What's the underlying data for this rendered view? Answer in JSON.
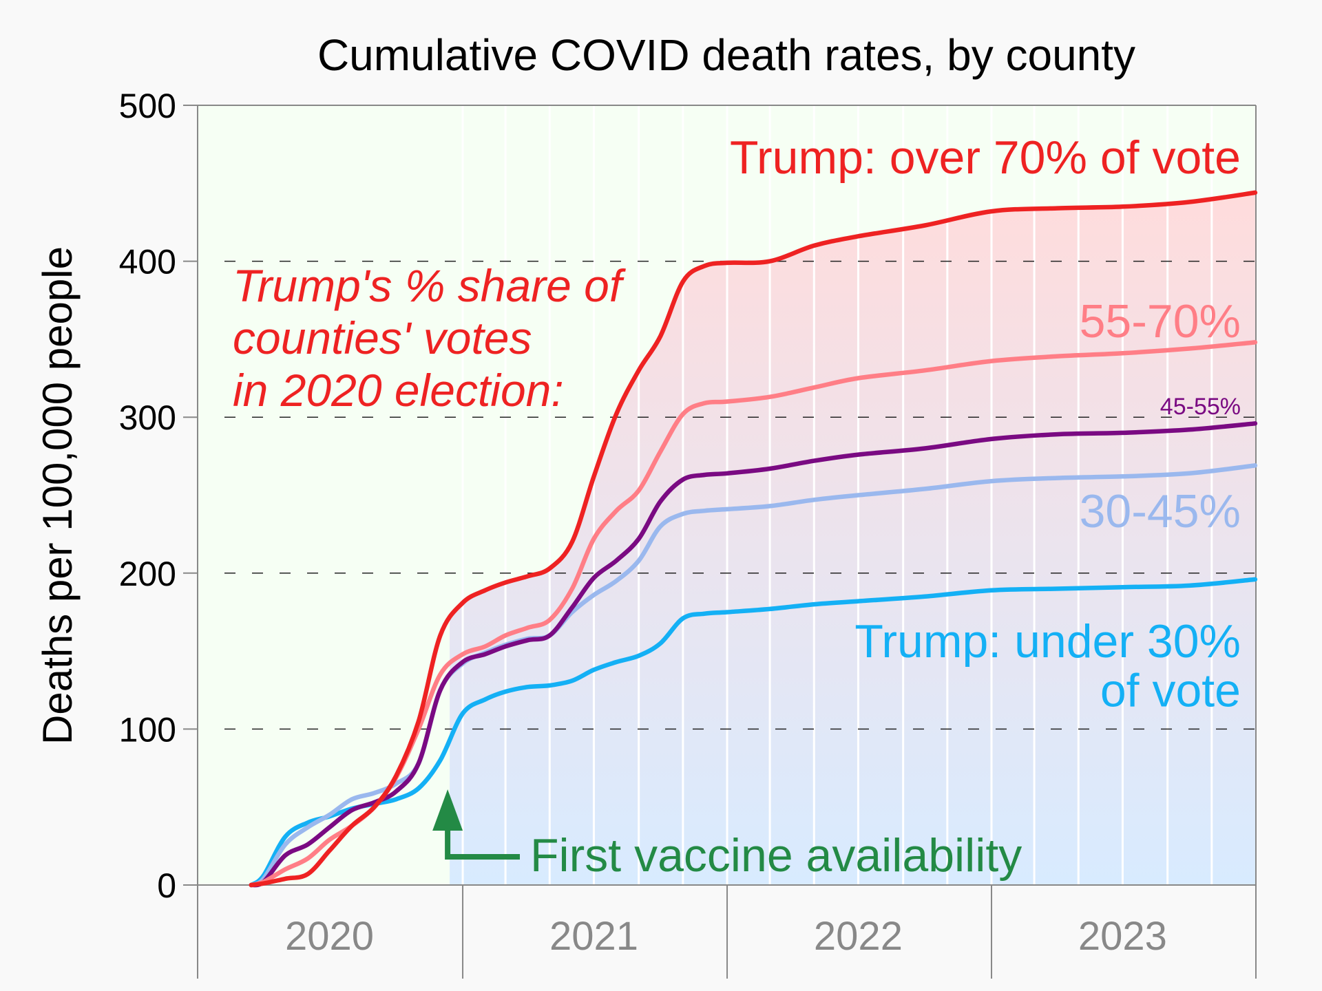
{
  "colors": {
    "background": "#f9f9f9",
    "plot_bg": "#f6fff4",
    "band_top": "#ffdcdc",
    "band_bottom": "#d8ebff",
    "vaccine": "#238a45",
    "axis": "#888888",
    "grid": "#222222",
    "year_text": "#888888"
  },
  "chart_data": {
    "type": "line",
    "title": "Cumulative COVID death rates, by county",
    "ylabel": "Deaths per 100,000 people",
    "xlabel": "",
    "x_unit": "date",
    "xlim": [
      "2020-01-01",
      "2023-12-31"
    ],
    "ylim": [
      0,
      500
    ],
    "yticks": [
      0,
      100,
      200,
      300,
      400,
      500
    ],
    "y_tick_labels": [
      "0",
      "100",
      "200",
      "300",
      "400",
      "500"
    ],
    "x_tick_labels": [
      {
        "label": "2020",
        "center": "2020-07-01"
      },
      {
        "label": "2021",
        "center": "2021-07-01"
      },
      {
        "label": "2022",
        "center": "2022-07-01"
      },
      {
        "label": "2023",
        "center": "2023-07-01"
      }
    ],
    "grid": "dashed horizontal at 100, 200, 300, 400",
    "legend": "labels placed on the right next to each line",
    "group_heading": "Trump's % share of\ncounties' votes\nin 2020 election:",
    "annotation": {
      "text": "First vaccine availability",
      "date": "2020-12-14"
    },
    "series": [
      {
        "name": "Trump: over 70% of vote",
        "label_lines": [
          "Trump: over 70% of vote"
        ],
        "color": "#ee2222",
        "points": [
          [
            "2020-03-15",
            0
          ],
          [
            "2020-04-01",
            1
          ],
          [
            "2020-05-01",
            4
          ],
          [
            "2020-06-01",
            7
          ],
          [
            "2020-07-01",
            22
          ],
          [
            "2020-08-01",
            38
          ],
          [
            "2020-09-01",
            50
          ],
          [
            "2020-10-01",
            70
          ],
          [
            "2020-11-01",
            105
          ],
          [
            "2020-12-01",
            160
          ],
          [
            "2021-01-01",
            181
          ],
          [
            "2021-02-01",
            189
          ],
          [
            "2021-03-01",
            194
          ],
          [
            "2021-04-01",
            198
          ],
          [
            "2021-05-01",
            203
          ],
          [
            "2021-06-01",
            220
          ],
          [
            "2021-07-01",
            262
          ],
          [
            "2021-08-01",
            302
          ],
          [
            "2021-09-01",
            330
          ],
          [
            "2021-10-01",
            352
          ],
          [
            "2021-11-01",
            387
          ],
          [
            "2021-12-01",
            397
          ],
          [
            "2022-01-01",
            399
          ],
          [
            "2022-03-01",
            400
          ],
          [
            "2022-05-01",
            410
          ],
          [
            "2022-07-01",
            416
          ],
          [
            "2022-10-01",
            423
          ],
          [
            "2023-01-01",
            432
          ],
          [
            "2023-04-01",
            434
          ],
          [
            "2023-07-01",
            435
          ],
          [
            "2023-10-01",
            438
          ],
          [
            "2023-12-31",
            444
          ]
        ]
      },
      {
        "name": "55-70%",
        "label_lines": [
          "55-70%"
        ],
        "color": "#ff7e86",
        "points": [
          [
            "2020-03-15",
            0
          ],
          [
            "2020-04-01",
            2
          ],
          [
            "2020-05-01",
            10
          ],
          [
            "2020-06-01",
            17
          ],
          [
            "2020-07-01",
            29
          ],
          [
            "2020-08-01",
            38
          ],
          [
            "2020-09-01",
            50
          ],
          [
            "2020-10-01",
            69
          ],
          [
            "2020-11-01",
            100
          ],
          [
            "2020-12-01",
            135
          ],
          [
            "2021-01-01",
            148
          ],
          [
            "2021-02-01",
            153
          ],
          [
            "2021-03-01",
            160
          ],
          [
            "2021-04-01",
            165
          ],
          [
            "2021-05-01",
            170
          ],
          [
            "2021-06-01",
            190
          ],
          [
            "2021-07-01",
            222
          ],
          [
            "2021-08-01",
            240
          ],
          [
            "2021-09-01",
            253
          ],
          [
            "2021-10-01",
            278
          ],
          [
            "2021-11-01",
            302
          ],
          [
            "2021-12-01",
            309
          ],
          [
            "2022-01-01",
            310
          ],
          [
            "2022-03-01",
            313
          ],
          [
            "2022-05-01",
            319
          ],
          [
            "2022-07-01",
            325
          ],
          [
            "2022-10-01",
            330
          ],
          [
            "2023-01-01",
            336
          ],
          [
            "2023-04-01",
            339
          ],
          [
            "2023-07-01",
            341
          ],
          [
            "2023-10-01",
            344
          ],
          [
            "2023-12-31",
            348
          ]
        ]
      },
      {
        "name": "45-55%",
        "label_lines": [
          "45-55%"
        ],
        "color": "#7a0a82",
        "points": [
          [
            "2020-03-15",
            0
          ],
          [
            "2020-04-01",
            2
          ],
          [
            "2020-05-01",
            19
          ],
          [
            "2020-06-01",
            26
          ],
          [
            "2020-07-01",
            37
          ],
          [
            "2020-08-01",
            48
          ],
          [
            "2020-09-01",
            53
          ],
          [
            "2020-10-01",
            60
          ],
          [
            "2020-11-01",
            78
          ],
          [
            "2020-12-01",
            125
          ],
          [
            "2021-01-01",
            143
          ],
          [
            "2021-02-01",
            148
          ],
          [
            "2021-03-01",
            153
          ],
          [
            "2021-04-01",
            157
          ],
          [
            "2021-05-01",
            160
          ],
          [
            "2021-06-01",
            178
          ],
          [
            "2021-07-01",
            197
          ],
          [
            "2021-08-01",
            208
          ],
          [
            "2021-09-01",
            222
          ],
          [
            "2021-10-01",
            246
          ],
          [
            "2021-11-01",
            260
          ],
          [
            "2021-12-01",
            263
          ],
          [
            "2022-01-01",
            264
          ],
          [
            "2022-03-01",
            267
          ],
          [
            "2022-05-01",
            272
          ],
          [
            "2022-07-01",
            276
          ],
          [
            "2022-10-01",
            280
          ],
          [
            "2023-01-01",
            286
          ],
          [
            "2023-04-01",
            289
          ],
          [
            "2023-07-01",
            290
          ],
          [
            "2023-10-01",
            292
          ],
          [
            "2023-12-31",
            296
          ]
        ]
      },
      {
        "name": "30-45%",
        "label_lines": [
          "30-45%"
        ],
        "color": "#9ab8ee",
        "points": [
          [
            "2020-03-15",
            0
          ],
          [
            "2020-04-01",
            4
          ],
          [
            "2020-05-01",
            26
          ],
          [
            "2020-06-01",
            37
          ],
          [
            "2020-07-01",
            45
          ],
          [
            "2020-08-01",
            55
          ],
          [
            "2020-09-01",
            59
          ],
          [
            "2020-10-01",
            65
          ],
          [
            "2020-11-01",
            78
          ],
          [
            "2020-12-01",
            125
          ],
          [
            "2021-01-01",
            142
          ],
          [
            "2021-02-01",
            149
          ],
          [
            "2021-03-01",
            154
          ],
          [
            "2021-04-01",
            158
          ],
          [
            "2021-05-01",
            160
          ],
          [
            "2021-06-01",
            175
          ],
          [
            "2021-07-01",
            186
          ],
          [
            "2021-08-01",
            195
          ],
          [
            "2021-09-01",
            208
          ],
          [
            "2021-10-01",
            230
          ],
          [
            "2021-11-01",
            238
          ],
          [
            "2021-12-01",
            240
          ],
          [
            "2022-01-01",
            241
          ],
          [
            "2022-03-01",
            243
          ],
          [
            "2022-05-01",
            247
          ],
          [
            "2022-07-01",
            250
          ],
          [
            "2022-10-01",
            254
          ],
          [
            "2023-01-01",
            259
          ],
          [
            "2023-04-01",
            261
          ],
          [
            "2023-07-01",
            262
          ],
          [
            "2023-10-01",
            264
          ],
          [
            "2023-12-31",
            269
          ]
        ]
      },
      {
        "name": "Trump: under 30% of vote",
        "label_lines": [
          "Trump: under 30%",
          "of vote"
        ],
        "color": "#14b0f5",
        "points": [
          [
            "2020-03-15",
            0
          ],
          [
            "2020-04-01",
            6
          ],
          [
            "2020-05-01",
            31
          ],
          [
            "2020-06-01",
            40
          ],
          [
            "2020-07-01",
            44
          ],
          [
            "2020-08-01",
            49
          ],
          [
            "2020-09-01",
            52
          ],
          [
            "2020-10-01",
            55
          ],
          [
            "2020-11-01",
            62
          ],
          [
            "2020-12-01",
            80
          ],
          [
            "2021-01-01",
            110
          ],
          [
            "2021-02-01",
            119
          ],
          [
            "2021-03-01",
            124
          ],
          [
            "2021-04-01",
            127
          ],
          [
            "2021-05-01",
            128
          ],
          [
            "2021-06-01",
            131
          ],
          [
            "2021-07-01",
            138
          ],
          [
            "2021-08-01",
            143
          ],
          [
            "2021-09-01",
            147
          ],
          [
            "2021-10-01",
            155
          ],
          [
            "2021-11-01",
            171
          ],
          [
            "2021-12-01",
            174
          ],
          [
            "2022-01-01",
            175
          ],
          [
            "2022-03-01",
            177
          ],
          [
            "2022-05-01",
            180
          ],
          [
            "2022-07-01",
            182
          ],
          [
            "2022-10-01",
            185
          ],
          [
            "2023-01-01",
            189
          ],
          [
            "2023-04-01",
            190
          ],
          [
            "2023-07-01",
            191
          ],
          [
            "2023-10-01",
            192
          ],
          [
            "2023-12-31",
            196
          ]
        ]
      }
    ]
  }
}
